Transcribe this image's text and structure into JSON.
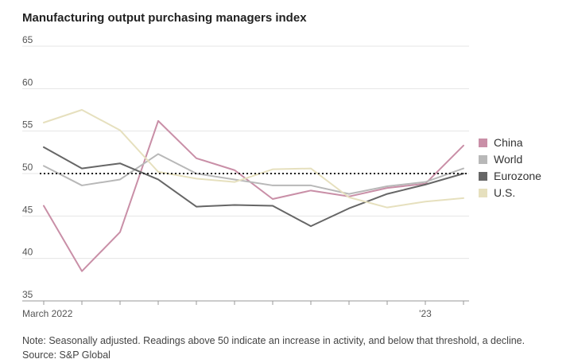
{
  "title": "Manufacturing output purchasing managers index",
  "note": "Note: Seasonally adjusted. Readings above 50 indicate an increase in activity, and below that threshold, a decline.",
  "source": "Source: S&P Global",
  "chart_data": {
    "type": "line",
    "title": "Manufacturing output purchasing managers index",
    "x": [
      "2022-03",
      "2022-04",
      "2022-05",
      "2022-06",
      "2022-07",
      "2022-08",
      "2022-09",
      "2022-10",
      "2022-11",
      "2022-12",
      "2023-01",
      "2023-02"
    ],
    "x_tick_labels": [
      "March 2022",
      "",
      "",
      "",
      "",
      "",
      "",
      "",
      "",
      "",
      "'23",
      ""
    ],
    "ylim": [
      35,
      65
    ],
    "y_ticks": [
      35,
      40,
      45,
      50,
      55,
      60,
      65
    ],
    "reference_line": 50,
    "grid": true,
    "legend_position": "right",
    "series": [
      {
        "name": "China",
        "color": "#c98fa7",
        "values": [
          46.2,
          38.5,
          43.1,
          56.2,
          51.8,
          50.4,
          47.0,
          48.0,
          47.3,
          48.3,
          48.8,
          53.3
        ]
      },
      {
        "name": "World",
        "color": "#b8b8b8",
        "values": [
          50.9,
          48.6,
          49.3,
          52.3,
          50.0,
          49.3,
          48.6,
          48.6,
          47.6,
          48.5,
          49.0,
          50.6
        ]
      },
      {
        "name": "Eurozone",
        "color": "#666666",
        "values": [
          53.1,
          50.6,
          51.2,
          49.3,
          46.1,
          46.3,
          46.2,
          43.8,
          45.9,
          47.6,
          48.7,
          50.0
        ]
      },
      {
        "name": "U.S.",
        "color": "#e6e0be",
        "values": [
          56.0,
          57.5,
          55.1,
          50.2,
          49.4,
          49.0,
          50.5,
          50.6,
          47.2,
          46.0,
          46.7,
          47.1
        ]
      }
    ]
  }
}
